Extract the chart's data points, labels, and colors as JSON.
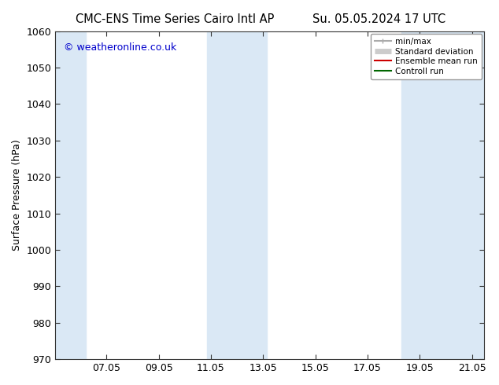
{
  "title_left": "CMC-ENS Time Series Cairo Intl AP",
  "title_right": "Su. 05.05.2024 17 UTC",
  "ylabel": "Surface Pressure (hPa)",
  "ylim": [
    970,
    1060
  ],
  "yticks": [
    970,
    980,
    990,
    1000,
    1010,
    1020,
    1030,
    1040,
    1050,
    1060
  ],
  "xlim": [
    5.04,
    21.46
  ],
  "xtick_labels": [
    "07.05",
    "09.05",
    "11.05",
    "13.05",
    "15.05",
    "17.05",
    "19.05",
    "21.05"
  ],
  "xtick_positions": [
    7.0,
    9.0,
    11.0,
    13.0,
    15.0,
    17.0,
    19.0,
    21.0
  ],
  "shaded_regions": [
    {
      "xmin": 5.04,
      "xmax": 6.2,
      "color": "#dae8f5"
    },
    {
      "xmin": 10.85,
      "xmax": 13.15,
      "color": "#dae8f5"
    },
    {
      "xmin": 18.3,
      "xmax": 21.46,
      "color": "#dae8f5"
    }
  ],
  "background_color": "#ffffff",
  "plot_bg_color": "#ffffff",
  "copyright_text": "© weatheronline.co.uk",
  "copyright_color": "#0000cc",
  "legend_items": [
    {
      "label": "min/max",
      "color": "#aaaaaa",
      "lw": 1.5
    },
    {
      "label": "Standard deviation",
      "color": "#cccccc",
      "lw": 5
    },
    {
      "label": "Ensemble mean run",
      "color": "#cc0000",
      "lw": 1.5
    },
    {
      "label": "Controll run",
      "color": "#006600",
      "lw": 1.5
    }
  ],
  "title_fontsize": 10.5,
  "axis_label_fontsize": 9,
  "tick_fontsize": 9,
  "legend_fontsize": 7.5,
  "copyright_fontsize": 9
}
